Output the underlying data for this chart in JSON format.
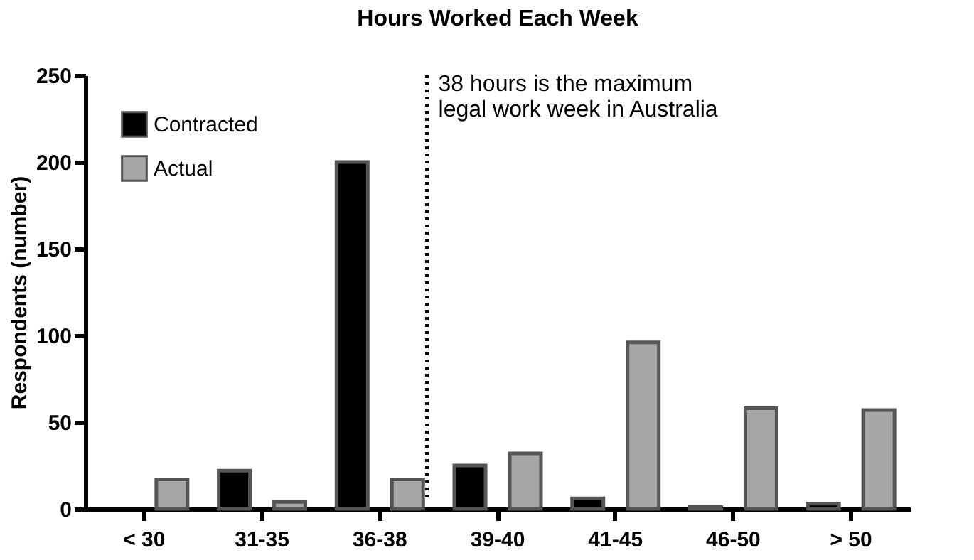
{
  "chart_data": {
    "type": "bar",
    "title": "Hours Worked Each Week",
    "ylabel": "Respondents (number)",
    "categories": [
      "< 30",
      "31-35",
      "36-38",
      "39-40",
      "41-45",
      "46-50",
      "> 50"
    ],
    "series": [
      {
        "name": "Contracted",
        "color": "#000000",
        "values": [
          0,
          22,
          200,
          25,
          6,
          1,
          3
        ]
      },
      {
        "name": "Actual",
        "color": "#a6a6a6",
        "values": [
          17,
          4,
          17,
          32,
          96,
          58,
          57
        ]
      }
    ],
    "ylim": [
      0,
      250
    ],
    "yticks": [
      0,
      50,
      100,
      150,
      200,
      250
    ],
    "grid": false,
    "legend": "top left",
    "ref_lines": [
      {
        "axis": "x",
        "value": "36-38",
        "label": "38 hours is the maximum\nlegal work week in Australia",
        "line_style": "dotted",
        "color": "#000000"
      }
    ]
  }
}
